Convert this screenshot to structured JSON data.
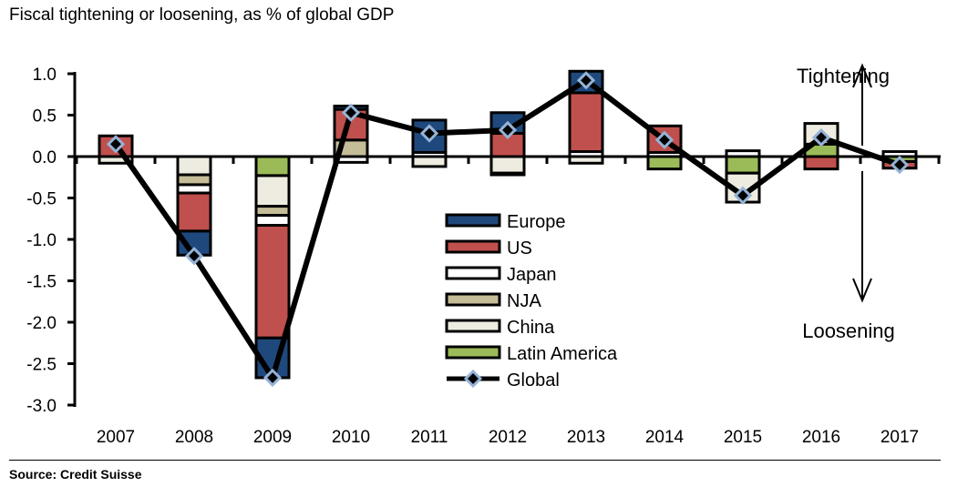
{
  "chart_data": {
    "type": "bar",
    "stacked": true,
    "title": "Fiscal tightening or loosening, as % of global GDP",
    "source": "Source: Credit Suisse",
    "categories": [
      "2007",
      "2008",
      "2009",
      "2010",
      "2011",
      "2012",
      "2013",
      "2014",
      "2015",
      "2016",
      "2017"
    ],
    "ylim": [
      -3.0,
      1.0
    ],
    "yticks": [
      "1.0",
      "0.5",
      "0.0",
      "-0.5",
      "-1.0",
      "-1.5",
      "-2.0",
      "-2.5",
      "-3.0"
    ],
    "ytick_values": [
      1.0,
      0.5,
      0.0,
      -0.5,
      -1.0,
      -1.5,
      -2.0,
      -2.5,
      -3.0
    ],
    "series": [
      {
        "name": "Europe",
        "color": "#1F497D",
        "values": [
          0,
          -0.29,
          -0.48,
          0.04,
          0.39,
          0.25,
          0.26,
          0,
          0,
          0,
          0
        ]
      },
      {
        "name": "US",
        "color": "#C0504D",
        "values": [
          0.25,
          -0.46,
          -1.36,
          0.37,
          0,
          0.28,
          0.71,
          0.32,
          0,
          -0.15,
          -0.08
        ]
      },
      {
        "name": "Japan",
        "color": "#FFFFFF",
        "values": [
          0,
          -0.1,
          -0.12,
          -0.07,
          0.05,
          -0.02,
          0.06,
          0.05,
          0.07,
          0,
          0.06
        ]
      },
      {
        "name": "NJA",
        "color": "#C4BD97",
        "values": [
          0,
          -0.12,
          -0.11,
          0.2,
          0,
          0,
          0,
          0,
          0,
          0,
          0
        ]
      },
      {
        "name": "China",
        "color": "#EEECE1",
        "values": [
          -0.08,
          -0.22,
          -0.37,
          0,
          -0.12,
          -0.2,
          -0.08,
          0,
          -0.35,
          0.25,
          0
        ]
      },
      {
        "name": "Latin America",
        "color": "#9BBB59",
        "values": [
          0,
          0,
          -0.23,
          0,
          0,
          0,
          0,
          -0.15,
          -0.2,
          0.15,
          -0.06
        ]
      }
    ],
    "line_series": {
      "name": "Global",
      "color": "#000000",
      "marker_color": "#95B3D7",
      "values": [
        0.15,
        -1.2,
        -2.67,
        0.53,
        0.28,
        0.32,
        0.92,
        0.2,
        -0.47,
        0.23,
        -0.1
      ]
    },
    "legend_placement": "center",
    "annotations": {
      "up": "Tightening",
      "down": "Loosening"
    }
  }
}
